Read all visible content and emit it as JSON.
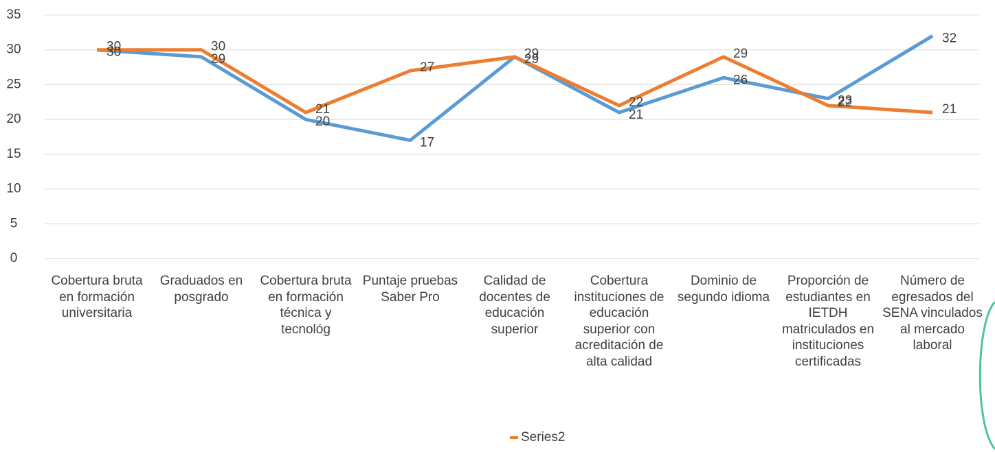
{
  "chart_data": {
    "type": "line",
    "categories": [
      "Cobertura bruta en formación universitaria",
      "Graduados en posgrado",
      "Cobertura bruta en formación técnica y tecnológ",
      "Puntaje pruebas Saber Pro",
      "Calidad de docentes de educación superior",
      "Cobertura instituciones de educación superior con acreditación de alta calidad",
      "Dominio de segundo idioma",
      "Proporción de estudiantes en IETDH matriculados en instituciones certificadas",
      "Número de egresados del SENA vinculados al mercado laboral"
    ],
    "series": [
      {
        "color": "#5b9bd5",
        "values": [
          30,
          29,
          20,
          17,
          29,
          21,
          26,
          23,
          32
        ]
      },
      {
        "name": "Series2",
        "color": "#ed7d31",
        "values": [
          30,
          30,
          21,
          27,
          29,
          22,
          29,
          22,
          21
        ]
      }
    ],
    "ylim": [
      0,
      35
    ],
    "yticks": [
      0,
      5,
      10,
      15,
      20,
      25,
      30,
      35
    ],
    "grid": true,
    "legend": "bottom"
  }
}
